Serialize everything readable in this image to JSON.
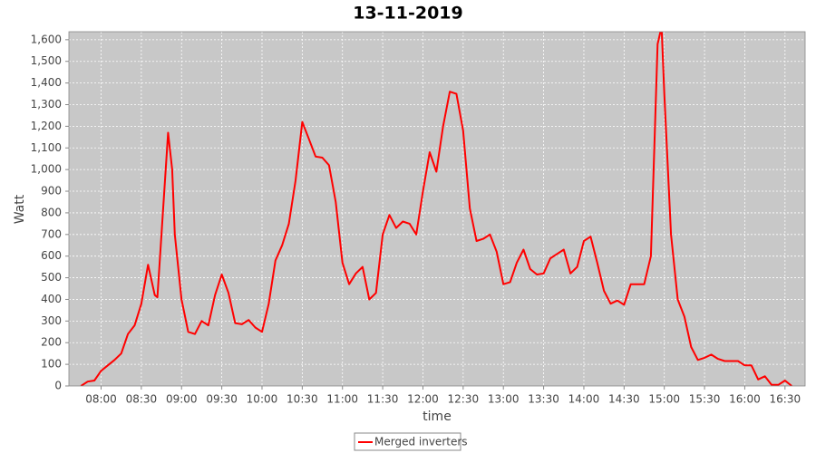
{
  "chart_data": {
    "type": "line",
    "title": "13-11-2019",
    "x_label": "time",
    "y_label": "Watt",
    "x": [
      "07:45",
      "07:50",
      "07:55",
      "08:00",
      "08:05",
      "08:10",
      "08:15",
      "08:20",
      "08:25",
      "08:30",
      "08:35",
      "08:40",
      "08:42",
      "08:45",
      "08:50",
      "08:53",
      "08:55",
      "09:00",
      "09:05",
      "09:10",
      "09:15",
      "09:20",
      "09:25",
      "09:30",
      "09:35",
      "09:40",
      "09:45",
      "09:50",
      "09:55",
      "10:00",
      "10:05",
      "10:10",
      "10:15",
      "10:20",
      "10:25",
      "10:30",
      "10:35",
      "10:40",
      "10:45",
      "10:50",
      "10:55",
      "11:00",
      "11:05",
      "11:10",
      "11:15",
      "11:20",
      "11:25",
      "11:30",
      "11:35",
      "11:40",
      "11:45",
      "11:50",
      "11:55",
      "12:00",
      "12:05",
      "12:10",
      "12:15",
      "12:20",
      "12:25",
      "12:30",
      "12:35",
      "12:40",
      "12:45",
      "12:50",
      "12:55",
      "13:00",
      "13:05",
      "13:10",
      "13:15",
      "13:20",
      "13:25",
      "13:30",
      "13:35",
      "13:40",
      "13:45",
      "13:50",
      "13:55",
      "14:00",
      "14:05",
      "14:10",
      "14:15",
      "14:20",
      "14:25",
      "14:30",
      "14:35",
      "14:40",
      "14:45",
      "14:50",
      "14:55",
      "14:58",
      "15:00",
      "15:05",
      "15:10",
      "15:15",
      "15:20",
      "15:25",
      "15:30",
      "15:35",
      "15:40",
      "15:45",
      "15:50",
      "15:55",
      "16:00",
      "16:05",
      "16:10",
      "16:15",
      "16:20",
      "16:25",
      "16:30",
      "16:35"
    ],
    "series": [
      {
        "name": "Merged inverters",
        "color": "#ff0000",
        "values": [
          0,
          20,
          25,
          70,
          95,
          120,
          150,
          240,
          280,
          380,
          560,
          420,
          410,
          700,
          1170,
          1000,
          700,
          400,
          250,
          240,
          300,
          280,
          420,
          515,
          430,
          290,
          285,
          305,
          270,
          250,
          380,
          580,
          650,
          750,
          950,
          1220,
          1140,
          1060,
          1055,
          1020,
          850,
          570,
          470,
          520,
          550,
          400,
          430,
          700,
          790,
          730,
          760,
          750,
          700,
          900,
          1080,
          990,
          1200,
          1360,
          1350,
          1180,
          820,
          670,
          680,
          700,
          620,
          470,
          480,
          570,
          630,
          540,
          515,
          520,
          590,
          610,
          630,
          520,
          550,
          670,
          690,
          570,
          440,
          380,
          395,
          375,
          470,
          470,
          470,
          600,
          1580,
          1660,
          1350,
          700,
          400,
          320,
          180,
          120,
          130,
          145,
          125,
          115,
          115,
          115,
          95,
          95,
          30,
          45,
          5,
          5,
          25,
          0
        ]
      }
    ],
    "xlim": [
      "07:36",
      "16:45"
    ],
    "xticks": [
      "08:00",
      "08:30",
      "09:00",
      "09:30",
      "10:00",
      "10:30",
      "11:00",
      "11:30",
      "12:00",
      "12:30",
      "13:00",
      "13:30",
      "14:00",
      "14:30",
      "15:00",
      "15:30",
      "16:00",
      "16:30"
    ],
    "ylim": [
      0,
      1637
    ],
    "yticks": [
      0,
      100,
      200,
      300,
      400,
      500,
      600,
      700,
      800,
      900,
      {
        "value": 1000,
        "label": "1,000"
      },
      {
        "value": 1100,
        "label": "1,100"
      },
      {
        "value": 1200,
        "label": "1,200"
      },
      {
        "value": 1300,
        "label": "1,300"
      },
      {
        "value": 1400,
        "label": "1,400"
      },
      {
        "value": 1500,
        "label": "1,500"
      },
      {
        "value": 1600,
        "label": "1,600"
      }
    ],
    "grid": true
  }
}
